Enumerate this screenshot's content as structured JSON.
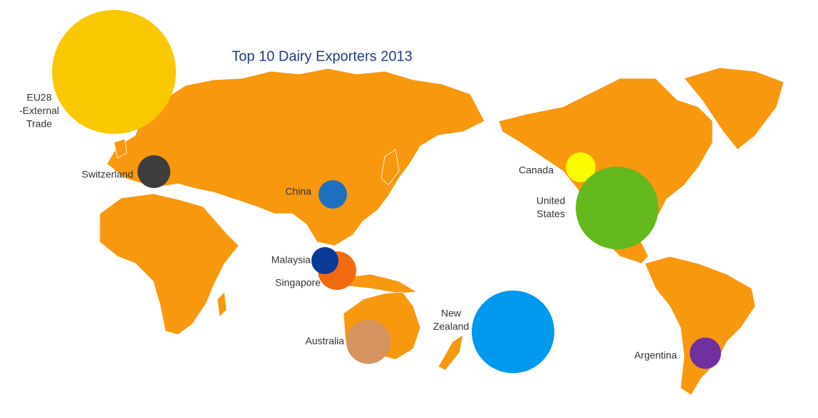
{
  "title": "Top 10 Dairy Exporters 2013",
  "bubbles": [
    {
      "label": [
        "EU28",
        "-External",
        "Trade"
      ],
      "color": "#fac800"
    },
    {
      "label": [
        "Switzerland"
      ],
      "color": "#3d3d3d"
    },
    {
      "label": [
        "China"
      ],
      "color": "#1e6fc0"
    },
    {
      "label": [
        "Singapore"
      ],
      "color": "#f26a0f"
    },
    {
      "label": [
        "Malaysia"
      ],
      "color": "#0a3a96"
    },
    {
      "label": [
        "Australia"
      ],
      "color": "#d4935f"
    },
    {
      "label": [
        "New",
        "Zealand"
      ],
      "color": "#0099ee"
    },
    {
      "label": [
        "Canada"
      ],
      "color": "#fafa00"
    },
    {
      "label": [
        "United",
        "States"
      ],
      "color": "#63b81e"
    },
    {
      "label": [
        "Argentina"
      ],
      "color": "#7030a0"
    }
  ]
}
